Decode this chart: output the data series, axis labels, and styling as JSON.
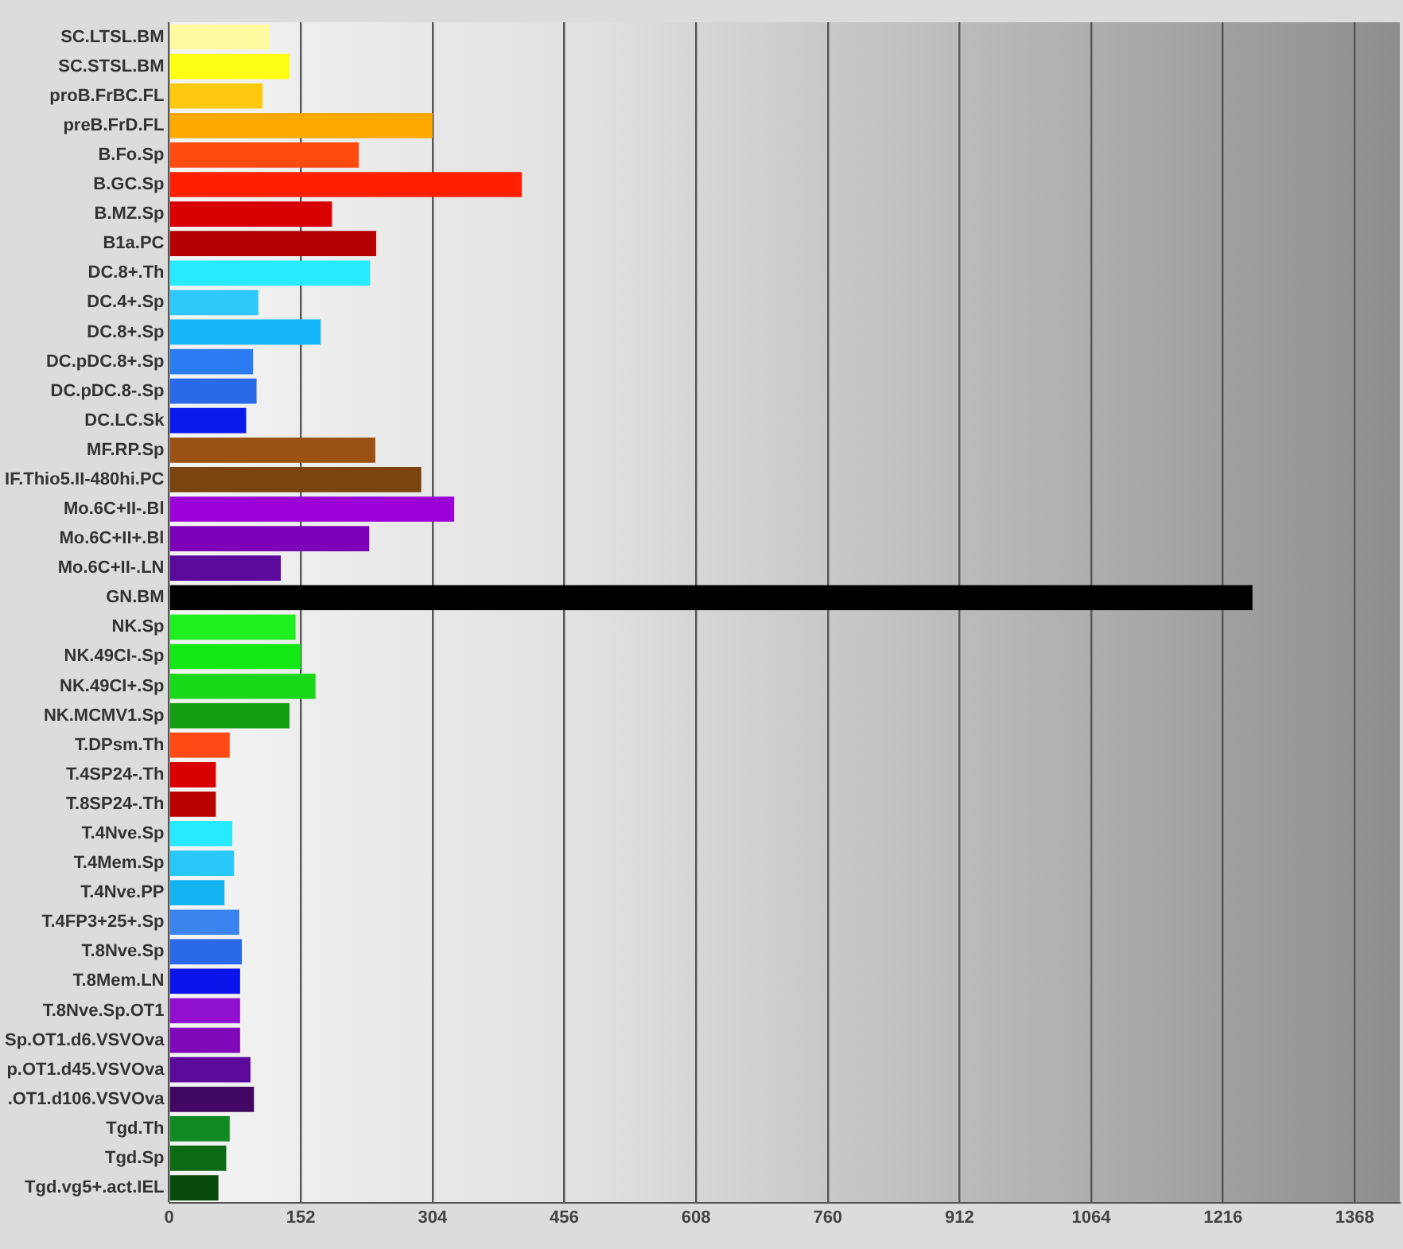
{
  "chart_data": {
    "type": "bar",
    "orientation": "horizontal",
    "grid": "x",
    "legend": false,
    "categories": [
      "SC.LTSL.BM",
      "SC.STSL.BM",
      "proB.FrBC.FL",
      "preB.FrD.FL",
      "B.Fo.Sp",
      "B.GC.Sp",
      "B.MZ.Sp",
      "B1a.PC",
      "DC.8+.Th",
      "DC.4+.Sp",
      "DC.8+.Sp",
      "DC.pDC.8+.Sp",
      "DC.pDC.8-.Sp",
      "DC.LC.Sk",
      "MF.RP.Sp",
      "IF.Thio5.II-480hi.PC",
      "Mo.6C+II-.Bl",
      "Mo.6C+II+.Bl",
      "Mo.6C+II-.LN",
      "GN.BM",
      "NK.Sp",
      "NK.49CI-.Sp",
      "NK.49CI+.Sp",
      "NK.MCMV1.Sp",
      "T.DPsm.Th",
      "T.4SP24-.Th",
      "T.8SP24-.Th",
      "T.4Nve.Sp",
      "T.4Mem.Sp",
      "T.4Nve.PP",
      "T.4FP3+25+.Sp",
      "T.8Nve.Sp",
      "T.8Mem.LN",
      "T.8Nve.Sp.OT1",
      "Sp.OT1.d6.VSVOva",
      "p.OT1.d45.VSVOva",
      ".OT1.d106.VSVOva",
      "Tgd.Th",
      "Tgd.Sp",
      "Tgd.vg5+.act.IEL"
    ],
    "values": [
      116,
      139,
      108,
      304,
      219,
      407,
      188,
      239,
      232,
      103,
      175,
      97,
      101,
      89,
      238,
      291,
      329,
      231,
      129,
      1250,
      146,
      152,
      169,
      139,
      70,
      54,
      54,
      73,
      75,
      64,
      81,
      84,
      82,
      82,
      82,
      94,
      98,
      70,
      66,
      57
    ],
    "colors": [
      "#fff9a0",
      "#ffff14",
      "#ffc90e",
      "#ffa800",
      "#ff4a10",
      "#ff2000",
      "#d80000",
      "#b40000",
      "#28eaff",
      "#30c8f8",
      "#14b4f8",
      "#2a7cf0",
      "#2a6ae8",
      "#0a1aea",
      "#9a5214",
      "#7a4410",
      "#9c00d8",
      "#7c00b8",
      "#5c0a9c",
      "#000000",
      "#20f020",
      "#14e814",
      "#18d818",
      "#12a012",
      "#ff4a14",
      "#d80000",
      "#b80000",
      "#28eaff",
      "#28c8f8",
      "#14b4f0",
      "#3a84f0",
      "#2a6ae8",
      "#0a14ea",
      "#9010d0",
      "#8008b8",
      "#5c0a9c",
      "#400860",
      "#108a20",
      "#0c6a14",
      "#084a0c"
    ],
    "xlim": [
      0,
      1420
    ],
    "xticks": [
      0,
      152,
      304,
      456,
      608,
      760,
      912,
      1064,
      1216,
      1368
    ]
  }
}
